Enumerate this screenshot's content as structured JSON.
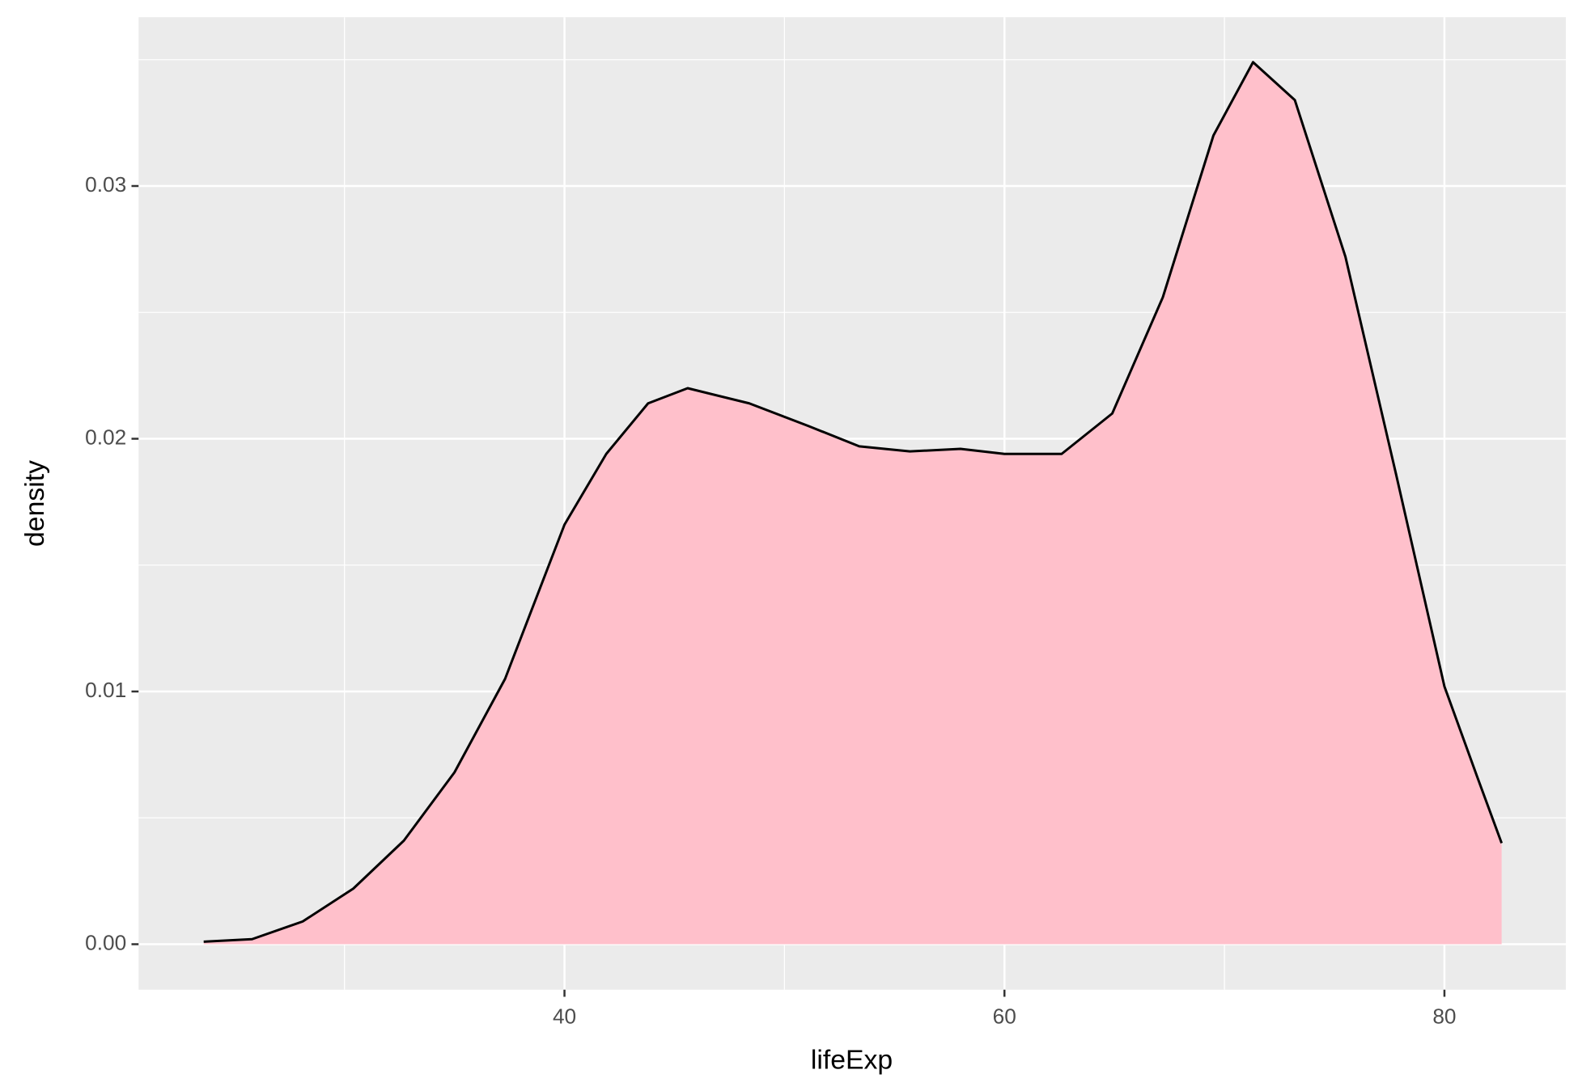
{
  "chart_data": {
    "type": "density",
    "x_label": "lifeExp",
    "y_label": "density",
    "x": [
      23.6,
      25.8,
      28.1,
      30.4,
      32.7,
      35.0,
      37.3,
      40.0,
      41.9,
      43.8,
      45.6,
      48.4,
      51.1,
      53.4,
      55.7,
      58.0,
      60.0,
      62.6,
      64.9,
      67.2,
      69.5,
      71.3,
      73.2,
      75.5,
      77.8,
      80.0,
      81.5,
      82.6
    ],
    "values": [
      0.0001,
      0.0002,
      0.0009,
      0.0022,
      0.0041,
      0.0068,
      0.0105,
      0.0166,
      0.0194,
      0.0214,
      0.022,
      0.0214,
      0.0205,
      0.0197,
      0.0195,
      0.0196,
      0.0194,
      0.0194,
      0.021,
      0.0256,
      0.032,
      0.0349,
      0.0334,
      0.0272,
      0.0186,
      0.0102,
      0.0066,
      0.004
    ],
    "fill": "#ffc0cb",
    "color": "#000000",
    "xlim": [
      20.64,
      85.52
    ],
    "ylim": [
      -0.0018,
      0.03668
    ],
    "xticks": [
      40,
      60,
      80
    ],
    "yticks": [
      {
        "value": 0,
        "label": "0.00"
      },
      0.01,
      0.02,
      0.03
    ],
    "grid": true
  }
}
